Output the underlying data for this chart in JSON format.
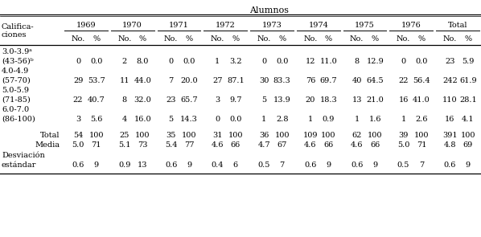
{
  "title": "Alumnos",
  "col_header_years": [
    "1969",
    "1970",
    "1971",
    "1972",
    "1973",
    "1974",
    "1975",
    "1976",
    "Total"
  ],
  "rows": [
    {
      "label1": "3.0-3.9ᵃ",
      "label2": "(43-56)ᵇ",
      "data": [
        "0",
        "0.0",
        "2",
        "8.0",
        "0",
        "0.0",
        "1",
        "3.2",
        "0",
        "0.0",
        "12",
        "11.0",
        "8",
        "12.9",
        "0",
        "0.0",
        "23",
        "5.9"
      ]
    },
    {
      "label1": "4.0-4.9",
      "label2": "(57-70)",
      "data": [
        "29",
        "53.7",
        "11",
        "44.0",
        "7",
        "20.0",
        "27",
        "87.1",
        "30",
        "83.3",
        "76",
        "69.7",
        "40",
        "64.5",
        "22",
        "56.4",
        "242",
        "61.9"
      ]
    },
    {
      "label1": "5.0-5.9",
      "label2": "(71-85)",
      "data": [
        "22",
        "40.7",
        "8",
        "32.0",
        "23",
        "65.7",
        "3",
        "9.7",
        "5",
        "13.9",
        "20",
        "18.3",
        "13",
        "21.0",
        "16",
        "41.0",
        "110",
        "28.1"
      ]
    },
    {
      "label1": "6.0-7.0",
      "label2": "(86-100)",
      "data": [
        "3",
        "5.6",
        "4",
        "16.0",
        "5",
        "14.3",
        "0",
        "0.0",
        "1",
        "2.8",
        "1",
        "0.9",
        "1",
        "1.6",
        "1",
        "2.6",
        "16",
        "4.1"
      ]
    }
  ],
  "total_row": {
    "label": "Total",
    "data": [
      "54",
      "100",
      "25",
      "100",
      "35",
      "100",
      "31",
      "100",
      "36",
      "100",
      "109",
      "100",
      "62",
      "100",
      "39",
      "100",
      "391",
      "100"
    ]
  },
  "media_row": {
    "label": "Media",
    "data": [
      "5.0",
      "71",
      "5.1",
      "73",
      "5.4",
      "77",
      "4.6",
      "66",
      "4.7",
      "67",
      "4.6",
      "66",
      "4.6",
      "66",
      "5.0",
      "71",
      "4.8",
      "69"
    ]
  },
  "desviacion_row": {
    "label1": "Desviación",
    "label2": "estándar",
    "data": [
      "0.6",
      "9",
      "0.9",
      "13",
      "0.6",
      "9",
      "0.4",
      "6",
      "0.5",
      "7",
      "0.6",
      "9",
      "0.6",
      "9",
      "0.5",
      "7",
      "0.6",
      "9"
    ]
  },
  "bg_color": "#ffffff",
  "text_color": "#000000",
  "font_size": 7.0,
  "title_font_size": 8.0
}
